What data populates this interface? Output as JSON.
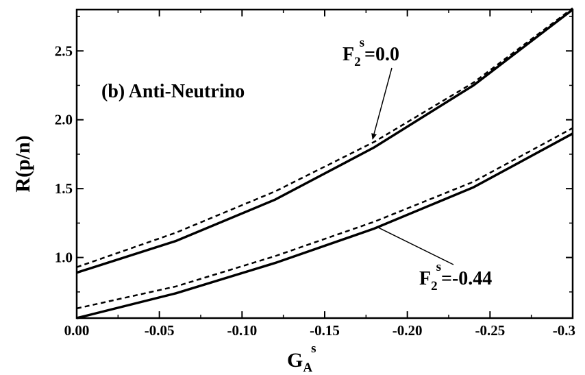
{
  "chart_data": {
    "type": "line",
    "title": "",
    "panel_label": "(b) Anti-Neutrino",
    "xlabel": {
      "main": "G",
      "sub": "A",
      "sup": "s"
    },
    "ylabel": "R(p/n)",
    "xlim": [
      0.0,
      -0.3
    ],
    "ylim": [
      0.56,
      2.8
    ],
    "x_ticks": [
      0.0,
      -0.05,
      -0.1,
      -0.15,
      -0.2,
      -0.25,
      -0.3
    ],
    "x_tick_labels": [
      "0.00",
      "-0.05",
      "-0.10",
      "-0.15",
      "-0.20",
      "-0.25",
      "-0.3"
    ],
    "y_ticks": [
      1.0,
      1.5,
      2.0,
      2.5
    ],
    "y_tick_labels": [
      "1.0",
      "1.5",
      "2.0",
      "2.5"
    ],
    "grid": false,
    "x": [
      0.0,
      -0.06,
      -0.12,
      -0.18,
      -0.24,
      -0.3
    ],
    "series": [
      {
        "style": "solid",
        "group": "F2s=0.0",
        "values": [
          0.89,
          1.12,
          1.42,
          1.8,
          2.25,
          2.8
        ]
      },
      {
        "style": "dashed",
        "group": "F2s=0.0",
        "values": [
          0.93,
          1.18,
          1.48,
          1.84,
          2.27,
          2.81
        ]
      },
      {
        "style": "solid",
        "group": "F2s=-0.44",
        "values": [
          0.56,
          0.74,
          0.96,
          1.21,
          1.51,
          1.9
        ]
      },
      {
        "style": "dashed",
        "group": "F2s=-0.44",
        "values": [
          0.63,
          0.79,
          1.01,
          1.26,
          1.55,
          1.94
        ]
      }
    ],
    "annotations": [
      {
        "main": "F",
        "sub": "2",
        "sup": "s",
        "rest": "=0.0",
        "points_to": {
          "x": -0.179,
          "y": 1.84
        }
      },
      {
        "main": "F",
        "sub": "2",
        "sup": "s",
        "rest": "=-0.44",
        "points_to": {
          "x": -0.182,
          "y": 1.22
        }
      }
    ]
  }
}
